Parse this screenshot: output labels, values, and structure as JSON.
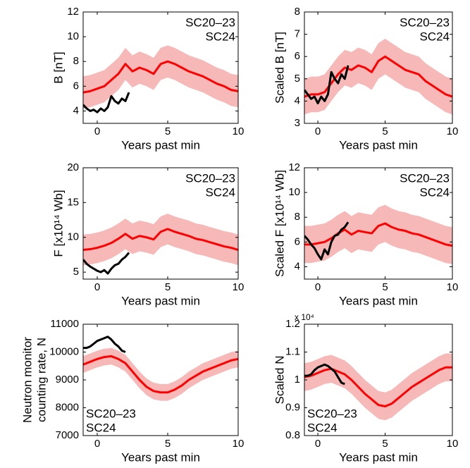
{
  "chart_data": [
    {
      "type": "line",
      "xlabel": "Years past min",
      "ylabel": [
        "B [nT]"
      ],
      "xlim": [
        -1,
        10
      ],
      "xticks": [
        0,
        5,
        10
      ],
      "ylim": [
        3,
        12
      ],
      "yticks": [
        4,
        6,
        8,
        10,
        12
      ],
      "legend": "upper right",
      "series": [
        {
          "name": "SC20–23",
          "color": "#ff0000",
          "band_color": "#f7b8b8",
          "band_width": 1.3,
          "x": [
            -1,
            -0.5,
            0,
            0.5,
            1,
            1.5,
            2,
            2.5,
            3,
            3.5,
            4,
            4.5,
            5,
            5.5,
            6,
            6.5,
            7,
            7.5,
            8,
            8.5,
            9,
            9.5,
            10
          ],
          "values": [
            5.5,
            5.6,
            5.8,
            6.0,
            6.5,
            7.0,
            7.8,
            7.2,
            7.5,
            7.3,
            7.0,
            7.8,
            8.0,
            7.8,
            7.5,
            7.2,
            7.0,
            6.8,
            6.5,
            6.2,
            6.0,
            5.7,
            5.6
          ]
        },
        {
          "name": "SC24",
          "color": "#000000",
          "x": [
            -1,
            -0.75,
            -0.5,
            -0.25,
            0,
            0.25,
            0.5,
            0.75,
            1,
            1.25,
            1.5,
            1.75,
            2,
            2.25
          ],
          "values": [
            4.5,
            4.2,
            4.0,
            4.1,
            3.9,
            4.2,
            4.0,
            4.3,
            5.2,
            4.8,
            4.6,
            5.0,
            4.8,
            5.5
          ]
        }
      ]
    },
    {
      "type": "line",
      "xlabel": "Years past min",
      "ylabel": [
        "Scaled B [nT]"
      ],
      "xlim": [
        -1,
        10
      ],
      "xticks": [
        0,
        5,
        10
      ],
      "ylim": [
        3,
        8
      ],
      "yticks": [
        3,
        4,
        5,
        6,
        7,
        8
      ],
      "legend": "upper right",
      "series": [
        {
          "name": "SC20–23",
          "color": "#ff0000",
          "band_color": "#f7b8b8",
          "band_width": 0.8,
          "x": [
            -1,
            -0.5,
            0,
            0.5,
            1,
            1.5,
            2,
            2.5,
            3,
            3.5,
            4,
            4.5,
            5,
            5.5,
            6,
            6.5,
            7,
            7.5,
            8,
            8.5,
            9,
            9.5,
            10
          ],
          "values": [
            4.2,
            4.3,
            4.3,
            4.4,
            4.8,
            5.2,
            5.5,
            5.4,
            5.6,
            5.5,
            5.3,
            5.8,
            6.0,
            5.8,
            5.6,
            5.4,
            5.3,
            5.2,
            4.9,
            4.7,
            4.5,
            4.3,
            4.2
          ]
        },
        {
          "name": "SC24",
          "color": "#000000",
          "x": [
            -1,
            -0.75,
            -0.5,
            -0.25,
            0,
            0.25,
            0.5,
            0.75,
            1,
            1.25,
            1.5,
            1.75,
            2,
            2.25
          ],
          "values": [
            4.5,
            4.3,
            4.1,
            4.2,
            3.9,
            4.2,
            4.0,
            4.3,
            5.3,
            5.0,
            4.8,
            5.2,
            5.0,
            5.6
          ]
        }
      ]
    },
    {
      "type": "line",
      "xlabel": "Years past min",
      "ylabel": [
        "F [x10¹⁴ Wb]"
      ],
      "xlim": [
        -1,
        10
      ],
      "xticks": [
        0,
        5,
        10
      ],
      "ylim": [
        4,
        20
      ],
      "yticks": [
        5,
        10,
        15,
        20
      ],
      "legend": "upper right",
      "series": [
        {
          "name": "SC20–23",
          "color": "#ff0000",
          "band_color": "#f7b8b8",
          "band_width": 2.2,
          "x": [
            -1,
            -0.5,
            0,
            0.5,
            1,
            1.5,
            2,
            2.5,
            3,
            3.5,
            4,
            4.5,
            5,
            5.5,
            6,
            6.5,
            7,
            7.5,
            8,
            8.5,
            9,
            9.5,
            10
          ],
          "values": [
            8.2,
            8.3,
            8.5,
            8.8,
            9.2,
            9.8,
            10.5,
            9.8,
            10.2,
            10.0,
            9.7,
            10.8,
            11.2,
            10.8,
            10.5,
            10.2,
            9.8,
            9.6,
            9.3,
            9.0,
            8.7,
            8.5,
            8.2
          ]
        },
        {
          "name": "SC24",
          "color": "#000000",
          "x": [
            -1,
            -0.75,
            -0.5,
            -0.25,
            0,
            0.25,
            0.5,
            0.75,
            1,
            1.25,
            1.5,
            1.75,
            2,
            2.25
          ],
          "values": [
            6.8,
            6.2,
            5.8,
            5.5,
            5.2,
            5.0,
            5.3,
            4.8,
            5.5,
            6.0,
            6.2,
            6.8,
            7.2,
            7.8
          ]
        }
      ]
    },
    {
      "type": "line",
      "xlabel": "Years past min",
      "ylabel": [
        "Scaled F [x10¹⁴ Wb]"
      ],
      "xlim": [
        -1,
        10
      ],
      "xticks": [
        0,
        5,
        10
      ],
      "ylim": [
        3,
        12
      ],
      "yticks": [
        4,
        6,
        8,
        10,
        12
      ],
      "legend": "upper right",
      "series": [
        {
          "name": "SC20–23",
          "color": "#ff0000",
          "band_color": "#f7b8b8",
          "band_width": 1.5,
          "x": [
            -1,
            -0.5,
            0,
            0.5,
            1,
            1.5,
            2,
            2.5,
            3,
            3.5,
            4,
            4.5,
            5,
            5.5,
            6,
            6.5,
            7,
            7.5,
            8,
            8.5,
            9,
            9.5,
            10
          ],
          "values": [
            5.8,
            5.8,
            5.9,
            6.0,
            6.3,
            6.7,
            7.0,
            6.6,
            6.9,
            6.8,
            6.7,
            7.3,
            7.5,
            7.2,
            7.0,
            6.9,
            6.7,
            6.6,
            6.4,
            6.2,
            6.0,
            5.8,
            5.7
          ]
        },
        {
          "name": "SC24",
          "color": "#000000",
          "x": [
            -1,
            -0.75,
            -0.5,
            -0.25,
            0,
            0.25,
            0.5,
            0.75,
            1,
            1.25,
            1.5,
            1.75,
            2,
            2.25
          ],
          "values": [
            6.5,
            6.2,
            5.8,
            5.5,
            5.0,
            4.6,
            5.4,
            5.0,
            6.0,
            6.5,
            6.6,
            7.0,
            7.2,
            7.6
          ]
        }
      ]
    },
    {
      "type": "line",
      "xlabel": "Years past min",
      "ylabel": [
        "Neutron monitor",
        "counting rate, N"
      ],
      "xlim": [
        -1,
        10
      ],
      "xticks": [
        0,
        5,
        10
      ],
      "ylim": [
        7000,
        11000
      ],
      "yticks": [
        7000,
        8000,
        9000,
        10000,
        11000
      ],
      "legend": "lower left",
      "series": [
        {
          "name": "SC20–23",
          "color": "#ff0000",
          "band_color": "#f7b8b8",
          "band_width": 300,
          "x": [
            -1,
            -0.5,
            0,
            0.5,
            1,
            1.5,
            2,
            2.5,
            3,
            3.5,
            4,
            4.5,
            5,
            5.5,
            6,
            6.5,
            7,
            7.5,
            8,
            8.5,
            9,
            9.5,
            10
          ],
          "values": [
            9550,
            9650,
            9750,
            9820,
            9850,
            9750,
            9600,
            9300,
            9000,
            8750,
            8600,
            8550,
            8550,
            8650,
            8800,
            9000,
            9150,
            9300,
            9400,
            9500,
            9600,
            9700,
            9750
          ]
        },
        {
          "name": "SC24",
          "color": "#000000",
          "x": [
            -1,
            -0.75,
            -0.5,
            -0.25,
            0,
            0.25,
            0.5,
            0.75,
            1,
            1.25,
            1.5,
            1.75,
            2
          ],
          "values": [
            10150,
            10150,
            10200,
            10300,
            10400,
            10450,
            10500,
            10550,
            10450,
            10300,
            10200,
            10050,
            10000
          ]
        }
      ]
    },
    {
      "type": "line",
      "xlabel": "Years past min",
      "ylabel": [
        "Scaled N"
      ],
      "axis_multiplier": "x 10⁴",
      "xlim": [
        -1,
        10
      ],
      "xticks": [
        0,
        5,
        10
      ],
      "ylim": [
        0.8,
        1.2
      ],
      "yticks": [
        0.8,
        0.9,
        1,
        1.1,
        1.2
      ],
      "legend": "lower left",
      "series": [
        {
          "name": "SC20–23",
          "color": "#ff0000",
          "band_color": "#f7b8b8",
          "band_width": 0.05,
          "x": [
            -1,
            -0.5,
            0,
            0.5,
            1,
            1.5,
            2,
            2.5,
            3,
            3.5,
            4,
            4.5,
            5,
            5.5,
            6,
            6.5,
            7,
            7.5,
            8,
            8.5,
            9,
            9.5,
            10
          ],
          "values": [
            1.01,
            1.015,
            1.025,
            1.035,
            1.04,
            1.03,
            1.02,
            1.0,
            0.975,
            0.95,
            0.93,
            0.91,
            0.905,
            0.915,
            0.935,
            0.955,
            0.975,
            0.99,
            1.005,
            1.02,
            1.035,
            1.045,
            1.045
          ]
        },
        {
          "name": "SC24",
          "color": "#000000",
          "x": [
            -1,
            -0.75,
            -0.5,
            -0.25,
            0,
            0.25,
            0.5,
            0.75,
            1,
            1.25,
            1.5,
            1.75,
            2
          ],
          "values": [
            1.015,
            1.015,
            1.02,
            1.035,
            1.045,
            1.05,
            1.055,
            1.05,
            1.04,
            1.03,
            1.01,
            0.99,
            0.985
          ]
        }
      ]
    }
  ]
}
